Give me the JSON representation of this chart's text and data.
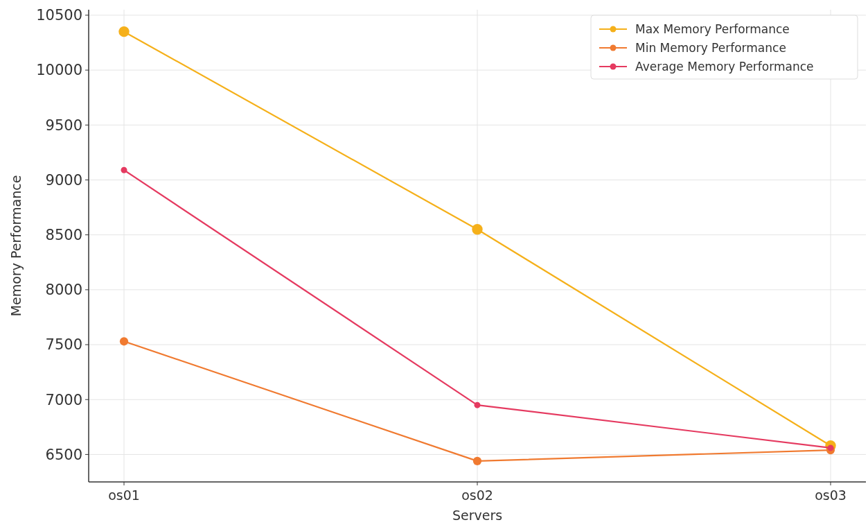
{
  "chart_data": {
    "type": "line",
    "xlabel": "Servers",
    "ylabel": "Memory Performance",
    "categories": [
      "os01",
      "os02",
      "os03"
    ],
    "series": [
      {
        "name": "Max Memory Performance",
        "color": "#f5b01a",
        "values": [
          10350,
          8550,
          6580
        ]
      },
      {
        "name": "Min Memory Performance",
        "color": "#f07a30",
        "values": [
          7530,
          6440,
          6540
        ]
      },
      {
        "name": "Average Memory Performance",
        "color": "#e53a60",
        "values": [
          9090,
          6950,
          6560
        ]
      }
    ],
    "ylim": [
      6250,
      10550
    ],
    "yticks": [
      6500,
      7000,
      7500,
      8000,
      8500,
      9000,
      9500,
      10000,
      10500
    ],
    "grid": true,
    "legend": "top right",
    "marker": "circle",
    "line_style": "solid"
  }
}
